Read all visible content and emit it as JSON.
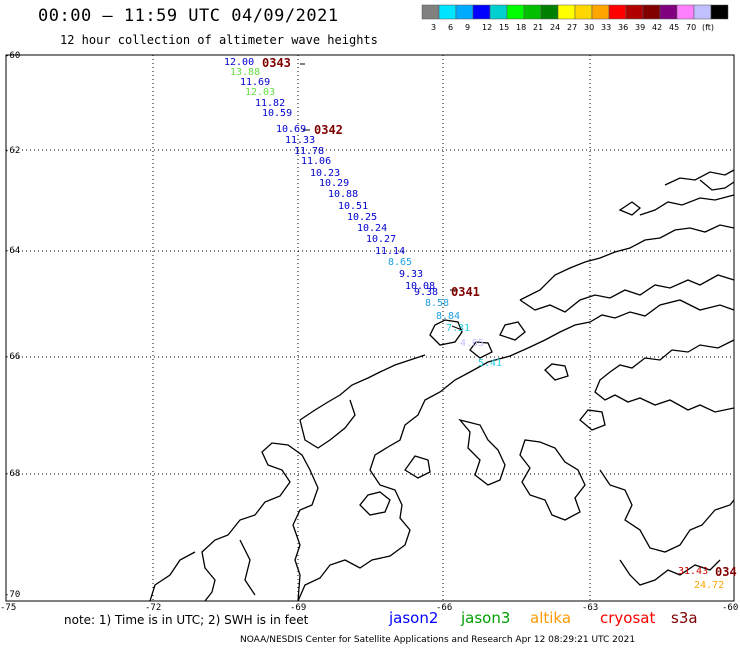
{
  "header": {
    "title": "00:00 – 11:59 UTC 04/09/2021",
    "subtitle": "12 hour collection of altimeter wave heights"
  },
  "colorbar": {
    "swatches": [
      "#808080",
      "#00e5ff",
      "#00aaff",
      "#0000ff",
      "#00d0d0",
      "#00ff00",
      "#00c000",
      "#008000",
      "#ffff00",
      "#ffd700",
      "#ffa500",
      "#ff0000",
      "#b00000",
      "#800000",
      "#800080",
      "#ff80ff",
      "#c0c0ff",
      "#000000"
    ],
    "labels": [
      "3",
      "6",
      "9",
      "12",
      "15",
      "18",
      "21",
      "24",
      "27",
      "30",
      "33",
      "36",
      "39",
      "42",
      "45",
      "70",
      "(ft)"
    ]
  },
  "axes": {
    "y_labels": [
      "-60",
      "-62",
      "-64",
      "-66",
      "-68",
      "-70"
    ],
    "x_labels": [
      "-75",
      "-72",
      "-69",
      "-66",
      "-63",
      "-60"
    ]
  },
  "measurements": [
    {
      "v": "12.00",
      "c": "#0000cd"
    },
    {
      "v": "13.88",
      "c": "#66dd44"
    },
    {
      "v": "11.69",
      "c": "#0000cd"
    },
    {
      "v": "12.03",
      "c": "#66dd44"
    },
    {
      "v": "11.82",
      "c": "#0000cd"
    },
    {
      "v": "10.59",
      "c": "#0000cd"
    },
    {
      "v": "10.69",
      "c": "#0000cd"
    },
    {
      "v": "11.33",
      "c": "#0000cd"
    },
    {
      "v": "11.78",
      "c": "#0000cd"
    },
    {
      "v": "11.06",
      "c": "#0000cd"
    },
    {
      "v": "10.23",
      "c": "#0000cd"
    },
    {
      "v": "10.29",
      "c": "#0000cd"
    },
    {
      "v": "10.88",
      "c": "#0000cd"
    },
    {
      "v": "10.51",
      "c": "#0000cd"
    },
    {
      "v": "10.25",
      "c": "#0000cd"
    },
    {
      "v": "10.24",
      "c": "#0000cd"
    },
    {
      "v": "10.27",
      "c": "#0000cd"
    },
    {
      "v": "11.14",
      "c": "#0000cd"
    },
    {
      "v": "8.65",
      "c": "#1e9fe0"
    },
    {
      "v": "9.33",
      "c": "#0000cd"
    },
    {
      "v": "10.08",
      "c": "#0000cd"
    },
    {
      "v": "9.38",
      "c": "#0000cd"
    },
    {
      "v": "8.58",
      "c": "#1e9fe0"
    },
    {
      "v": "8.84",
      "c": "#1e9fe0"
    },
    {
      "v": "7.31",
      "c": "#22cce0"
    },
    {
      "v": "4.65",
      "c": "#c0c0ff"
    },
    {
      "v": "5.41",
      "c": "#22cce0"
    },
    {
      "v": "31.43",
      "c": "#cc0000"
    },
    {
      "v": "24.72",
      "c": "#ffa500"
    }
  ],
  "pass_times": [
    "0343",
    "0342",
    "0341",
    "034"
  ],
  "note": "note: 1) Time is in UTC; 2) SWH is in feet",
  "satellites": [
    {
      "name": "jason2",
      "color": "#0000ff"
    },
    {
      "name": "jason3",
      "color": "#00a000"
    },
    {
      "name": "altika",
      "color": "#ff9900"
    },
    {
      "name": "cryosat",
      "color": "#ff0000"
    },
    {
      "name": "s3a",
      "color": "#800000"
    }
  ],
  "credit": "NOAA/NESDIS Center for Satellite Applications and Research    Apr 12 08:29:21 UTC 2021"
}
